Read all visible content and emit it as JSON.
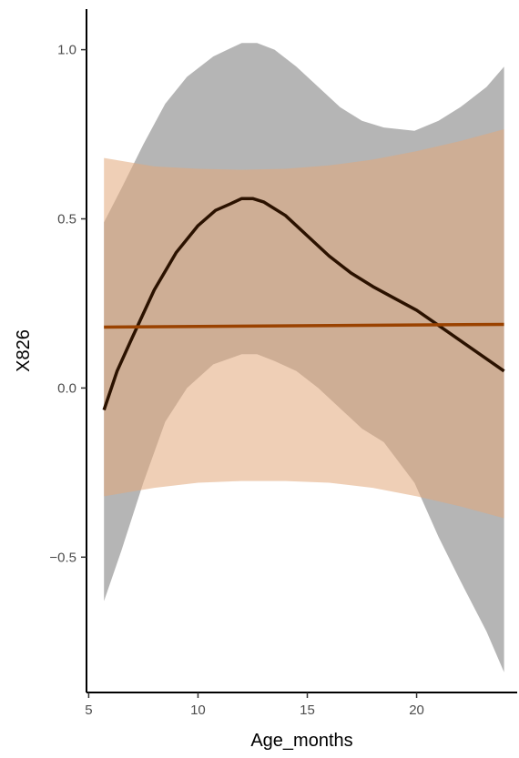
{
  "chart_data": {
    "type": "line",
    "title": "",
    "xlabel": "Age_months",
    "ylabel": "X826",
    "xlim": [
      4.9,
      24.6
    ],
    "ylim": [
      -0.9,
      1.12
    ],
    "xticks": [
      5,
      10,
      15,
      20
    ],
    "xtick_labels": [
      "5",
      "10",
      "15",
      "20"
    ],
    "yticks": [
      -0.5,
      0.0,
      0.5,
      1.0
    ],
    "ytick_labels": [
      "−0.5",
      "0.0",
      "0.5",
      "1.0"
    ],
    "grid": false,
    "legend": "none",
    "series": [
      {
        "kind": "ribbon",
        "role": "loess-confidence-band",
        "color": "#999999",
        "opacity": 0.72,
        "x": [
          5.7,
          6.5,
          7.5,
          8.5,
          9.5,
          10.7,
          12.0,
          12.7,
          13.5,
          14.5,
          15.5,
          16.5,
          17.5,
          18.5,
          19.9,
          21.0,
          22.0,
          23.2,
          24.0
        ],
        "upper": [
          0.49,
          0.59,
          0.72,
          0.84,
          0.92,
          0.98,
          1.02,
          1.02,
          1.0,
          0.95,
          0.89,
          0.83,
          0.79,
          0.77,
          0.76,
          0.79,
          0.83,
          0.89,
          0.95
        ],
        "lower": [
          -0.63,
          -0.48,
          -0.28,
          -0.1,
          0.0,
          0.07,
          0.1,
          0.1,
          0.08,
          0.05,
          0.0,
          -0.06,
          -0.12,
          -0.16,
          -0.28,
          -0.44,
          -0.57,
          -0.72,
          -0.84
        ]
      },
      {
        "kind": "ribbon",
        "role": "linear-confidence-band",
        "color": "#e2a87a",
        "opacity": 0.55,
        "x": [
          5.7,
          8.0,
          10.0,
          12.0,
          14.0,
          16.0,
          18.0,
          20.0,
          22.0,
          24.0
        ],
        "upper": [
          0.68,
          0.655,
          0.648,
          0.645,
          0.648,
          0.658,
          0.675,
          0.7,
          0.73,
          0.765
        ],
        "lower": [
          -0.32,
          -0.295,
          -0.28,
          -0.275,
          -0.275,
          -0.28,
          -0.295,
          -0.32,
          -0.35,
          -0.385
        ]
      },
      {
        "kind": "line",
        "role": "loess-fit",
        "color": "#2b1200",
        "x": [
          5.7,
          6.3,
          7.0,
          8.0,
          9.0,
          10.0,
          10.8,
          11.5,
          12.0,
          12.5,
          13.0,
          14.0,
          15.0,
          16.0,
          17.0,
          18.0,
          19.0,
          20.0,
          21.0,
          22.0,
          23.0,
          24.0
        ],
        "y": [
          -0.065,
          0.05,
          0.15,
          0.29,
          0.4,
          0.48,
          0.525,
          0.545,
          0.56,
          0.56,
          0.55,
          0.51,
          0.45,
          0.39,
          0.34,
          0.3,
          0.265,
          0.23,
          0.185,
          0.14,
          0.095,
          0.05
        ]
      },
      {
        "kind": "line",
        "role": "linear-fit",
        "color": "#9a4200",
        "x": [
          5.7,
          24.0
        ],
        "y": [
          0.18,
          0.188
        ]
      }
    ]
  }
}
